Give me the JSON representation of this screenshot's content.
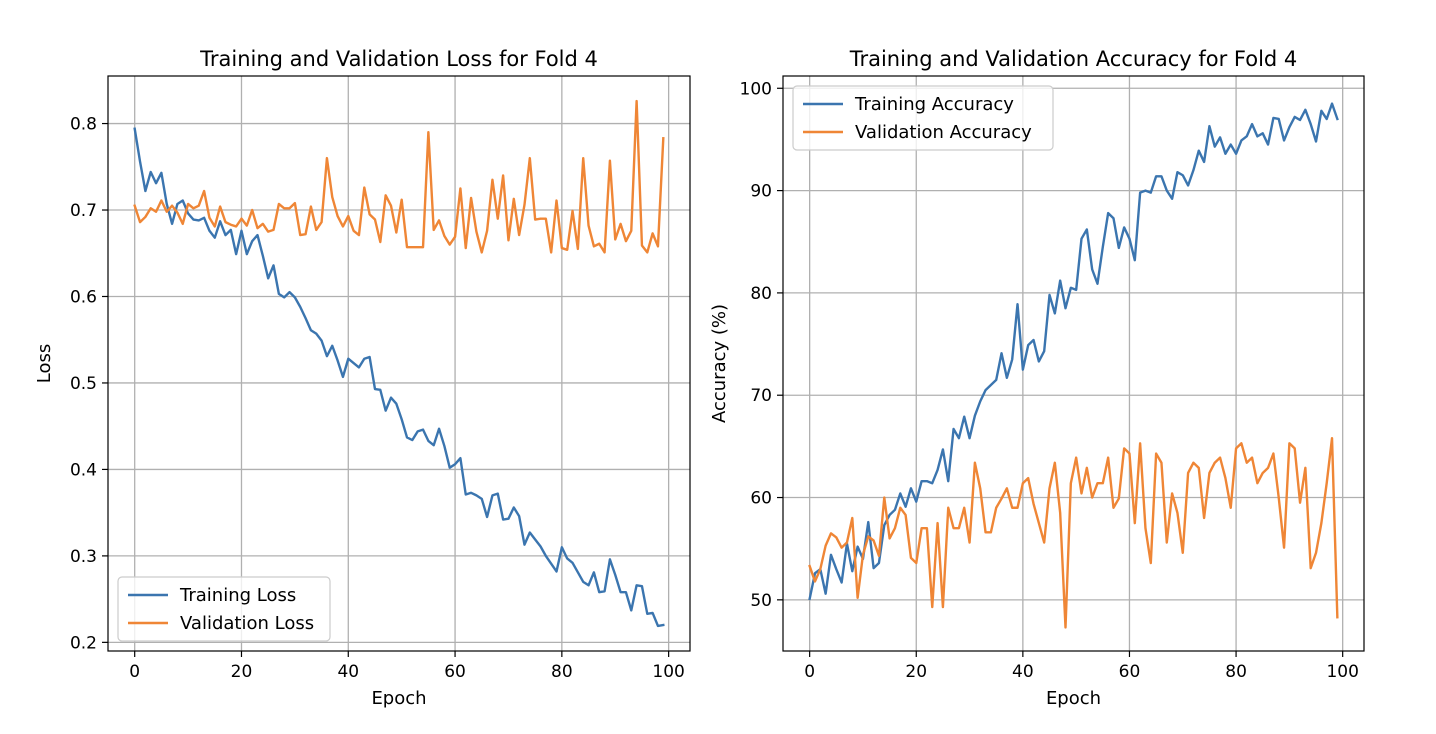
{
  "chart_data": [
    {
      "type": "line",
      "title": "Training and Validation Loss for Fold 4",
      "xlabel": "Epoch",
      "ylabel": "Loss",
      "xlim": [
        -5,
        104
      ],
      "ylim": [
        0.19,
        0.855
      ],
      "xticks": [
        0,
        20,
        40,
        60,
        80,
        100
      ],
      "yticks": [
        0.2,
        0.3,
        0.4,
        0.5,
        0.6,
        0.7,
        0.8
      ],
      "ytick_labels": [
        "0.2",
        "0.3",
        "0.4",
        "0.5",
        "0.6",
        "0.7",
        "0.8"
      ],
      "grid": true,
      "legend_position": "lower-left",
      "series": [
        {
          "name": "Training Loss",
          "color": "#3b75af",
          "values": [
            0.794,
            0.756,
            0.722,
            0.744,
            0.731,
            0.743,
            0.707,
            0.684,
            0.707,
            0.711,
            0.696,
            0.689,
            0.688,
            0.691,
            0.676,
            0.668,
            0.687,
            0.671,
            0.677,
            0.649,
            0.676,
            0.649,
            0.664,
            0.671,
            0.647,
            0.621,
            0.636,
            0.603,
            0.599,
            0.605,
            0.599,
            0.588,
            0.575,
            0.561,
            0.557,
            0.549,
            0.531,
            0.543,
            0.526,
            0.507,
            0.528,
            0.523,
            0.518,
            0.528,
            0.53,
            0.493,
            0.492,
            0.468,
            0.483,
            0.476,
            0.458,
            0.437,
            0.434,
            0.444,
            0.446,
            0.433,
            0.428,
            0.447,
            0.427,
            0.402,
            0.406,
            0.413,
            0.371,
            0.373,
            0.37,
            0.366,
            0.345,
            0.37,
            0.372,
            0.342,
            0.343,
            0.356,
            0.346,
            0.313,
            0.327,
            0.319,
            0.311,
            0.3,
            0.291,
            0.282,
            0.31,
            0.297,
            0.292,
            0.281,
            0.27,
            0.266,
            0.281,
            0.258,
            0.259,
            0.296,
            0.278,
            0.258,
            0.258,
            0.237,
            0.266,
            0.265,
            0.233,
            0.234,
            0.219,
            0.22
          ]
        },
        {
          "name": "Validation Loss",
          "color": "#ef8636",
          "values": [
            0.705,
            0.686,
            0.692,
            0.702,
            0.698,
            0.711,
            0.698,
            0.705,
            0.697,
            0.684,
            0.707,
            0.702,
            0.705,
            0.722,
            0.691,
            0.681,
            0.704,
            0.686,
            0.683,
            0.681,
            0.69,
            0.682,
            0.7,
            0.679,
            0.684,
            0.675,
            0.677,
            0.707,
            0.702,
            0.702,
            0.708,
            0.671,
            0.672,
            0.704,
            0.677,
            0.686,
            0.76,
            0.715,
            0.693,
            0.681,
            0.693,
            0.676,
            0.671,
            0.726,
            0.695,
            0.689,
            0.663,
            0.717,
            0.705,
            0.674,
            0.712,
            0.657,
            0.657,
            0.657,
            0.657,
            0.79,
            0.677,
            0.688,
            0.67,
            0.66,
            0.669,
            0.725,
            0.656,
            0.714,
            0.675,
            0.651,
            0.676,
            0.735,
            0.69,
            0.74,
            0.665,
            0.713,
            0.671,
            0.706,
            0.76,
            0.689,
            0.69,
            0.69,
            0.651,
            0.711,
            0.656,
            0.654,
            0.699,
            0.655,
            0.76,
            0.682,
            0.658,
            0.661,
            0.651,
            0.757,
            0.666,
            0.684,
            0.664,
            0.676,
            0.826,
            0.659,
            0.651,
            0.673,
            0.658,
            0.783
          ]
        }
      ]
    },
    {
      "type": "line",
      "title": "Training and Validation Accuracy for Fold 4",
      "xlabel": "Epoch",
      "ylabel": "Accuracy (%)",
      "xlim": [
        -5,
        104
      ],
      "ylim": [
        45.0,
        101.2
      ],
      "xticks": [
        0,
        20,
        40,
        60,
        80,
        100
      ],
      "yticks": [
        50,
        60,
        70,
        80,
        90,
        100
      ],
      "ytick_labels": [
        "50",
        "60",
        "70",
        "80",
        "90",
        "100"
      ],
      "grid": true,
      "legend_position": "upper-left",
      "series": [
        {
          "name": "Training Accuracy",
          "color": "#3b75af",
          "values": [
            50.1,
            52.6,
            53.0,
            50.6,
            54.4,
            53.0,
            51.7,
            55.5,
            52.8,
            55.2,
            54.0,
            57.6,
            53.1,
            53.6,
            57.3,
            58.3,
            58.8,
            60.4,
            59.1,
            60.9,
            59.6,
            61.6,
            61.6,
            61.4,
            62.7,
            64.7,
            61.6,
            66.7,
            65.8,
            67.9,
            65.8,
            68.0,
            69.4,
            70.5,
            71.0,
            71.5,
            74.1,
            71.7,
            73.5,
            78.9,
            72.5,
            74.9,
            75.4,
            73.3,
            74.3,
            79.8,
            78.0,
            81.2,
            78.5,
            80.5,
            80.3,
            85.3,
            86.2,
            82.3,
            80.9,
            84.5,
            87.8,
            87.3,
            84.4,
            86.4,
            85.3,
            83.2,
            89.8,
            90.0,
            89.8,
            91.4,
            91.4,
            90.0,
            89.2,
            91.8,
            91.5,
            90.5,
            92.0,
            93.9,
            92.8,
            96.3,
            94.3,
            95.2,
            93.6,
            94.5,
            93.6,
            94.9,
            95.3,
            96.5,
            95.3,
            95.6,
            94.5,
            97.1,
            97.0,
            94.9,
            96.2,
            97.2,
            96.9,
            97.9,
            96.5,
            94.8,
            97.8,
            97.0,
            98.5,
            97.0
          ]
        },
        {
          "name": "Validation Accuracy",
          "color": "#ef8636",
          "values": [
            53.3,
            51.8,
            53.0,
            55.3,
            56.5,
            56.1,
            55.1,
            55.6,
            58.0,
            50.2,
            54.4,
            56.2,
            55.8,
            54.3,
            60.0,
            56.0,
            57.0,
            59.0,
            58.3,
            54.1,
            53.6,
            57.0,
            57.0,
            49.3,
            57.5,
            49.3,
            59.0,
            57.0,
            57.0,
            59.0,
            55.6,
            63.4,
            60.9,
            56.6,
            56.6,
            59.0,
            59.9,
            60.9,
            59.0,
            59.0,
            61.4,
            61.9,
            59.4,
            57.5,
            55.6,
            60.9,
            63.4,
            58.5,
            47.3,
            61.4,
            63.9,
            60.4,
            62.9,
            60.0,
            61.4,
            61.4,
            63.9,
            59.0,
            59.9,
            64.8,
            64.3,
            57.5,
            65.3,
            57.0,
            53.6,
            64.3,
            63.4,
            55.6,
            60.4,
            58.5,
            54.6,
            62.4,
            63.4,
            62.9,
            58.0,
            62.4,
            63.4,
            63.9,
            61.9,
            59.0,
            64.8,
            65.3,
            63.4,
            63.9,
            61.4,
            62.4,
            62.9,
            64.3,
            60.0,
            55.1,
            65.3,
            64.8,
            59.5,
            62.9,
            53.1,
            54.6,
            57.5,
            61.4,
            65.8,
            48.3
          ]
        }
      ]
    }
  ]
}
